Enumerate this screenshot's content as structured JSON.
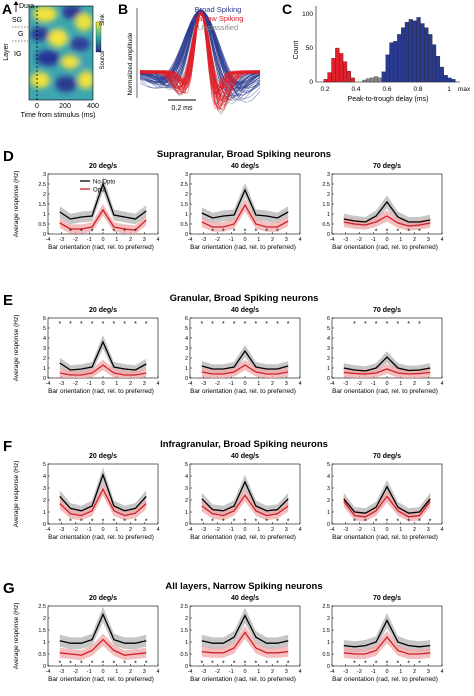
{
  "top": {
    "A": {
      "letter": "A",
      "dura": "Dura",
      "layers": [
        "SG",
        "G",
        "IG"
      ],
      "ylabel": "Layer",
      "xlabel": "Time from stimulus (ms)",
      "xticks": [
        "0",
        "200",
        "400"
      ],
      "cbar_top": "Sink",
      "cbar_bottom": "Source"
    },
    "B": {
      "letter": "B",
      "ylabel": "Normalized amplitude",
      "scalebar": "0.2 ms",
      "legend": [
        {
          "name": "Broad Spiking",
          "color": "#2a3b8f"
        },
        {
          "name": "Narrow Spiking",
          "color": "#e0202a"
        },
        {
          "name": "Unclassified",
          "color": "#8a8a8a"
        }
      ]
    },
    "C": {
      "letter": "C",
      "ylabel": "Count",
      "xlabel": "Peak-to-trough delay (ms)",
      "xticks": [
        "0.2",
        "0.4",
        "0.6",
        "0.8",
        "1"
      ],
      "xmax_label": "max",
      "yticks": [
        "0",
        "50",
        "100"
      ]
    }
  },
  "colors": {
    "no_opto": "#000000",
    "opto": "#d0202a",
    "no_opto_band": "#b3b3b3",
    "opto_band": "#f0a8a8",
    "broad": "#2a3b8f",
    "narrow": "#e0202a",
    "unclassified": "#8a8a8a"
  },
  "common": {
    "xlabel": "Bar orientation (rad, rel. to preferred)",
    "ylabel": "Average response (Hz)",
    "xticks": [
      "-4",
      "-3",
      "-2",
      "-1",
      "0",
      "1",
      "2",
      "3",
      "4"
    ],
    "legend": [
      "No Opto",
      "Opto"
    ]
  },
  "chart_data": [
    {
      "type": "line",
      "row": "D",
      "title": "Supragranular, Broad Spiking neurons",
      "yticks": [
        "0",
        "0.5",
        "1",
        "1.5",
        "2",
        "2.5",
        "3"
      ],
      "ylim": [
        0,
        3
      ],
      "xlim": [
        -4,
        4
      ],
      "x": [
        -3.14,
        -2.36,
        -1.57,
        -0.79,
        0,
        0.79,
        1.57,
        2.36,
        3.14
      ],
      "panels": [
        {
          "subtitle": "20 deg/s",
          "series": [
            {
              "name": "No Opto",
              "values": [
                1.1,
                0.75,
                0.85,
                0.9,
                2.5,
                0.95,
                0.85,
                0.75,
                1.15
              ]
            },
            {
              "name": "Opto",
              "values": [
                0.55,
                0.25,
                0.25,
                0.35,
                1.2,
                0.35,
                0.25,
                0.2,
                0.7
              ]
            }
          ],
          "stars": [
            -2.36,
            -1.57,
            -0.79,
            0,
            0.79,
            1.57,
            2.36
          ]
        },
        {
          "subtitle": "40 deg/s",
          "series": [
            {
              "name": "No Opto",
              "values": [
                1.05,
                0.8,
                0.9,
                0.95,
                2.2,
                0.95,
                0.9,
                0.8,
                1.1
              ]
            },
            {
              "name": "Opto",
              "values": [
                0.6,
                0.35,
                0.35,
                0.5,
                1.45,
                0.5,
                0.35,
                0.35,
                0.65
              ]
            }
          ],
          "stars": [
            -2.36,
            -1.57,
            -0.79,
            0,
            0.79,
            1.57,
            2.36
          ]
        },
        {
          "subtitle": "70 deg/s",
          "series": [
            {
              "name": "No Opto",
              "values": [
                0.75,
                0.65,
                0.6,
                0.9,
                1.6,
                0.85,
                0.6,
                0.6,
                0.7
              ]
            },
            {
              "name": "Opto",
              "values": [
                0.6,
                0.5,
                0.45,
                0.6,
                0.9,
                0.55,
                0.4,
                0.45,
                0.55
              ]
            }
          ],
          "stars": [
            -0.79,
            0,
            0.79,
            1.57,
            2.36
          ]
        }
      ]
    },
    {
      "type": "line",
      "row": "E",
      "title": "Granular, Broad Spiking neurons",
      "yticks": [
        "0",
        "1",
        "2",
        "3",
        "4",
        "5",
        "6"
      ],
      "ylim": [
        0,
        6
      ],
      "xlim": [
        -4,
        4
      ],
      "x": [
        -3.14,
        -2.36,
        -1.57,
        -0.79,
        0,
        0.79,
        1.57,
        2.36,
        3.14
      ],
      "panels": [
        {
          "subtitle": "20 deg/s",
          "series": [
            {
              "name": "No Opto",
              "values": [
                1.5,
                0.8,
                0.9,
                1.1,
                3.6,
                1.1,
                0.9,
                0.8,
                1.4
              ]
            },
            {
              "name": "Opto",
              "values": [
                0.5,
                0.3,
                0.3,
                0.5,
                1.3,
                0.5,
                0.3,
                0.3,
                0.5
              ]
            }
          ],
          "stars": [
            -3.14,
            -2.36,
            -1.57,
            -0.79,
            0,
            0.79,
            1.57,
            2.36,
            3.14
          ]
        },
        {
          "subtitle": "40 deg/s",
          "series": [
            {
              "name": "No Opto",
              "values": [
                1.2,
                0.9,
                0.9,
                1.1,
                2.7,
                1.1,
                0.9,
                0.9,
                1.2
              ]
            },
            {
              "name": "Opto",
              "values": [
                0.6,
                0.4,
                0.4,
                0.6,
                1.3,
                0.6,
                0.4,
                0.4,
                0.6
              ]
            }
          ],
          "stars": [
            -3.14,
            -2.36,
            -1.57,
            -0.79,
            0,
            0.79,
            1.57,
            2.36,
            3.14
          ]
        },
        {
          "subtitle": "70 deg/s",
          "series": [
            {
              "name": "No Opto",
              "values": [
                1.0,
                0.8,
                0.7,
                1.0,
                2.1,
                1.0,
                0.75,
                0.8,
                1.0
              ]
            },
            {
              "name": "Opto",
              "values": [
                0.55,
                0.45,
                0.4,
                0.5,
                0.9,
                0.5,
                0.4,
                0.45,
                0.55
              ]
            }
          ],
          "stars": [
            -2.36,
            -1.57,
            -0.79,
            0,
            0.79,
            1.57,
            2.36
          ]
        }
      ]
    },
    {
      "type": "line",
      "row": "F",
      "title": "Infragranular, Broad Spiking neurons",
      "yticks": [
        "0",
        "1",
        "2",
        "3",
        "4",
        "5"
      ],
      "ylim": [
        0,
        5
      ],
      "xlim": [
        -4,
        4
      ],
      "x": [
        -3.14,
        -2.36,
        -1.57,
        -0.79,
        0,
        0.79,
        1.57,
        2.36,
        3.14
      ],
      "panels": [
        {
          "subtitle": "20 deg/s",
          "series": [
            {
              "name": "No Opto",
              "values": [
                2.3,
                1.3,
                1.1,
                1.5,
                4.1,
                1.5,
                1.1,
                1.3,
                2.3
              ]
            },
            {
              "name": "Opto",
              "values": [
                1.7,
                0.85,
                0.7,
                1.1,
                2.9,
                1.1,
                0.7,
                0.9,
                1.7
              ]
            }
          ],
          "stars": [
            -3.14,
            -2.36,
            -1.57,
            -0.79,
            0,
            0.79,
            1.57,
            2.36,
            3.14
          ]
        },
        {
          "subtitle": "40 deg/s",
          "series": [
            {
              "name": "No Opto",
              "values": [
                2.1,
                1.2,
                1.1,
                1.5,
                3.5,
                1.5,
                1.1,
                1.2,
                2.1
              ]
            },
            {
              "name": "Opto",
              "values": [
                1.5,
                0.85,
                0.7,
                1.1,
                2.4,
                1.1,
                0.7,
                0.85,
                1.5
              ]
            }
          ],
          "stars": [
            -3.14,
            -2.36,
            -1.57,
            -0.79,
            0,
            0.79,
            1.57,
            2.36,
            3.14
          ]
        },
        {
          "subtitle": "70 deg/s",
          "series": [
            {
              "name": "No Opto",
              "values": [
                2.1,
                1.0,
                0.9,
                1.4,
                3.1,
                1.4,
                0.9,
                1.0,
                2.1
              ]
            },
            {
              "name": "Opto",
              "values": [
                1.9,
                0.7,
                0.6,
                1.1,
                2.3,
                1.1,
                0.6,
                0.7,
                1.9
              ]
            }
          ],
          "stars": [
            -2.36,
            -1.57,
            -0.79,
            0,
            0.79,
            1.57,
            2.36,
            3.14
          ]
        }
      ]
    },
    {
      "type": "line",
      "row": "G",
      "title": "All layers, Narrow Spiking neurons",
      "yticks": [
        "0",
        "0.5",
        "1",
        "1.5",
        "2",
        "2.5"
      ],
      "ylim": [
        0,
        2.5
      ],
      "xlim": [
        -4,
        4
      ],
      "x": [
        -3.14,
        -2.36,
        -1.57,
        -0.79,
        0,
        0.79,
        1.57,
        2.36,
        3.14
      ],
      "panels": [
        {
          "subtitle": "20 deg/s",
          "series": [
            {
              "name": "No Opto",
              "values": [
                1.05,
                0.95,
                0.95,
                1.1,
                2.15,
                1.1,
                0.95,
                0.95,
                1.05
              ]
            },
            {
              "name": "Opto",
              "values": [
                0.55,
                0.5,
                0.45,
                0.65,
                1.1,
                0.65,
                0.45,
                0.5,
                0.55
              ]
            }
          ],
          "stars": [
            -3.14,
            -2.36,
            -1.57,
            -0.79,
            0,
            0.79,
            1.57,
            2.36,
            3.14
          ]
        },
        {
          "subtitle": "40 deg/s",
          "series": [
            {
              "name": "No Opto",
              "values": [
                1.05,
                0.95,
                0.95,
                1.2,
                2.1,
                1.2,
                0.95,
                0.95,
                1.05
              ]
            },
            {
              "name": "Opto",
              "values": [
                0.6,
                0.55,
                0.55,
                0.75,
                1.4,
                0.75,
                0.55,
                0.55,
                0.6
              ]
            }
          ],
          "stars": [
            -3.14,
            -2.36,
            -1.57,
            -0.79,
            0,
            0.79,
            1.57,
            2.36,
            3.14
          ]
        },
        {
          "subtitle": "70 deg/s",
          "series": [
            {
              "name": "No Opto",
              "values": [
                0.85,
                0.8,
                0.85,
                1.0,
                1.9,
                1.0,
                0.85,
                0.8,
                0.85
              ]
            },
            {
              "name": "Opto",
              "values": [
                0.55,
                0.5,
                0.5,
                0.65,
                1.2,
                0.65,
                0.5,
                0.5,
                0.55
              ]
            }
          ],
          "stars": [
            -2.36,
            -1.57,
            -0.79,
            0,
            0.79,
            1.57,
            2.36
          ]
        }
      ]
    }
  ]
}
